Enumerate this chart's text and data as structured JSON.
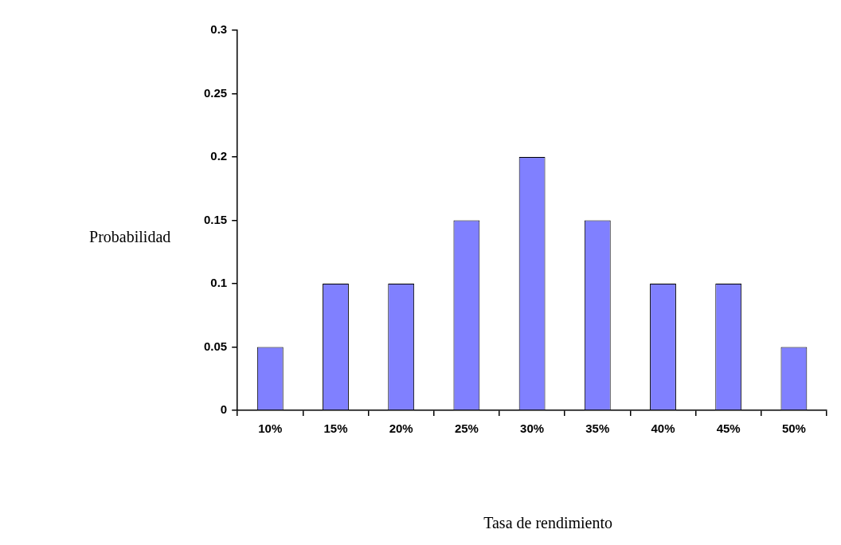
{
  "chart_data": {
    "type": "bar",
    "xlabel": "Tasa de rendimiento",
    "ylabel": "Probabilidad",
    "categories": [
      "10%",
      "15%",
      "20%",
      "25%",
      "30%",
      "35%",
      "40%",
      "45%",
      "50%"
    ],
    "values": [
      0.05,
      0.1,
      0.1,
      0.15,
      0.2,
      0.15,
      0.1,
      0.1,
      0.05
    ],
    "color": "#8080ff",
    "ylim": [
      0,
      0.3
    ],
    "yticks": [
      0,
      0.05,
      0.1,
      0.15,
      0.2,
      0.25,
      0.3
    ],
    "grid": false,
    "legend": false
  }
}
